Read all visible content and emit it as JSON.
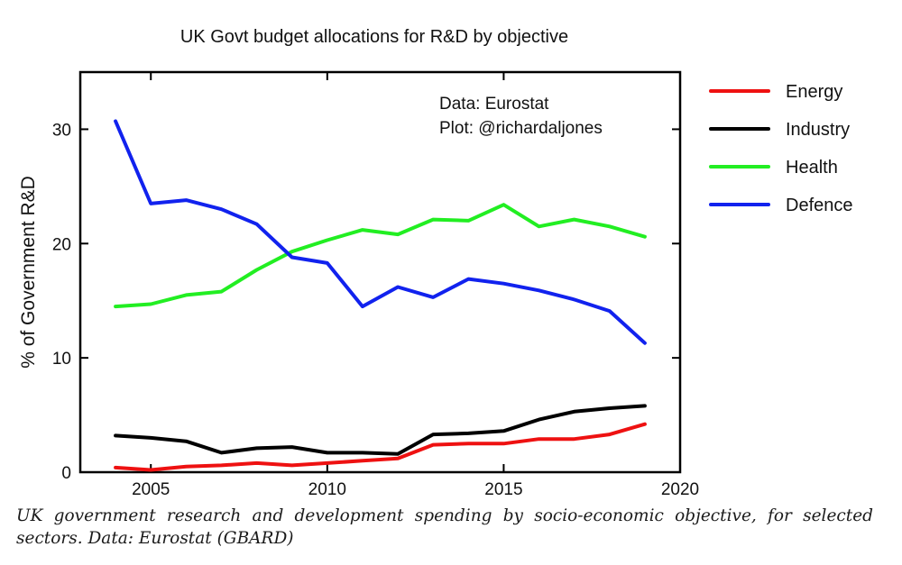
{
  "chart_data": {
    "type": "line",
    "title": "UK Govt budget allocations for R&D by objective",
    "xlabel": "",
    "ylabel": "% of Government R&D",
    "xlim": [
      2003,
      2020
    ],
    "ylim": [
      0,
      35
    ],
    "x_ticks": [
      2005,
      2010,
      2015,
      2020
    ],
    "y_ticks": [
      0,
      10,
      20,
      30
    ],
    "x": [
      2004,
      2005,
      2006,
      2007,
      2008,
      2009,
      2010,
      2011,
      2012,
      2013,
      2014,
      2015,
      2016,
      2017,
      2018,
      2019
    ],
    "series": [
      {
        "name": "Energy",
        "color": "#ee1111",
        "values": [
          0.4,
          0.2,
          0.5,
          0.6,
          0.8,
          0.6,
          0.8,
          1.0,
          1.2,
          2.4,
          2.5,
          2.5,
          2.9,
          2.9,
          3.3,
          4.2
        ]
      },
      {
        "name": "Industry",
        "color": "#000000",
        "values": [
          3.2,
          3.0,
          2.7,
          1.7,
          2.1,
          2.2,
          1.7,
          1.7,
          1.6,
          3.3,
          3.4,
          3.6,
          4.6,
          5.3,
          5.6,
          5.8
        ]
      },
      {
        "name": "Health",
        "color": "#22ee22",
        "values": [
          14.5,
          14.7,
          15.5,
          15.8,
          17.7,
          19.3,
          20.3,
          21.2,
          20.8,
          22.1,
          22.0,
          23.4,
          21.5,
          22.1,
          21.5,
          20.6
        ]
      },
      {
        "name": "Defence",
        "color": "#1122ee",
        "values": [
          30.7,
          23.5,
          23.8,
          23.0,
          21.7,
          18.8,
          18.3,
          14.5,
          16.2,
          15.3,
          16.9,
          16.5,
          15.9,
          15.1,
          14.1,
          11.3
        ]
      }
    ],
    "annotation": [
      "Data: Eurostat",
      "Plot: @richardaljones"
    ],
    "legend_position": "right",
    "grid": false
  },
  "caption": "UK government research and development spending by socio-economic objective, for selected sectors. Data: Eurostat (GBARD)"
}
